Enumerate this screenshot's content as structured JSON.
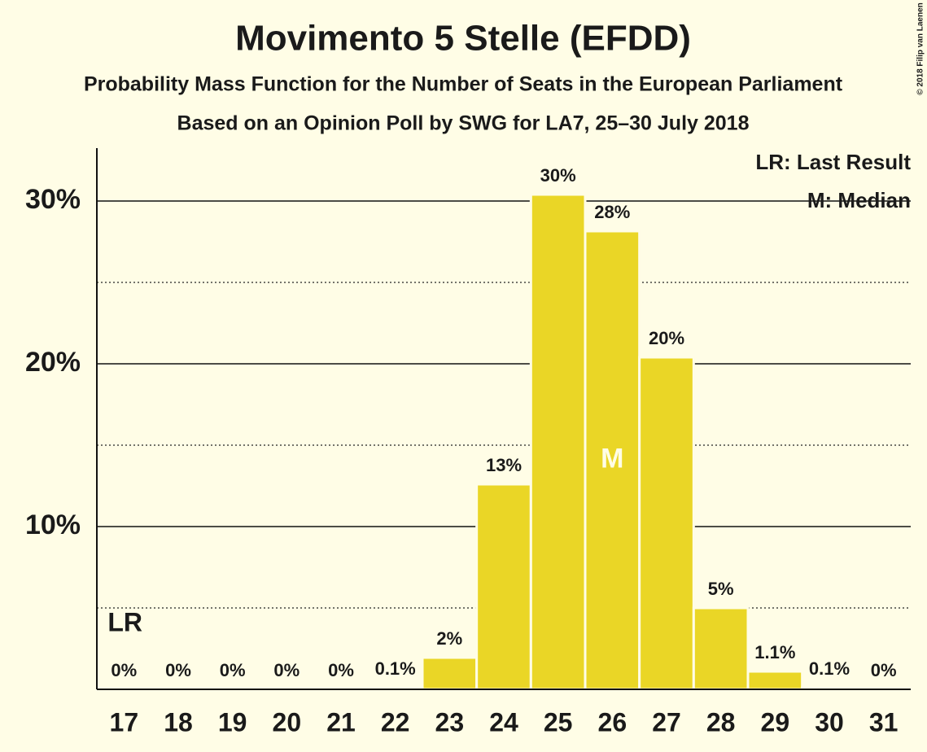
{
  "chart_data": {
    "type": "bar",
    "title": "Movimento 5 Stelle (EFDD)",
    "subtitle": "Probability Mass Function for the Number of Seats in the European Parliament",
    "subtitle2": "Based on an Opinion Poll by SWG for LA7, 25–30 July 2018",
    "copyright": "© 2018 Filip van Laenen",
    "categories": [
      "17",
      "18",
      "19",
      "20",
      "21",
      "22",
      "23",
      "24",
      "25",
      "26",
      "27",
      "28",
      "29",
      "30",
      "31"
    ],
    "values": [
      0,
      0,
      0,
      0,
      0,
      0.1,
      1.95,
      12.6,
      30.4,
      28.15,
      20.4,
      5.0,
      1.1,
      0.1,
      0
    ],
    "value_labels": [
      "0%",
      "0%",
      "0%",
      "0%",
      "0%",
      "0.1%",
      "2%",
      "13%",
      "30%",
      "28%",
      "20%",
      "5%",
      "1.1%",
      "0.1%",
      "0%"
    ],
    "color": "#ead626",
    "ylim": [
      0,
      33.25
    ],
    "yticks": [
      {
        "value": 10,
        "label": "10%"
      },
      {
        "value": 20,
        "label": "20%"
      },
      {
        "value": 30,
        "label": "30%"
      }
    ],
    "minor_yticks": [
      5,
      15,
      25
    ],
    "grid": true,
    "last_result": {
      "label": "LR",
      "category": "17"
    },
    "median": {
      "label": "M",
      "category": "26"
    },
    "legend": [
      "LR: Last Result",
      "M: Median"
    ],
    "legend_position": "upper right"
  }
}
